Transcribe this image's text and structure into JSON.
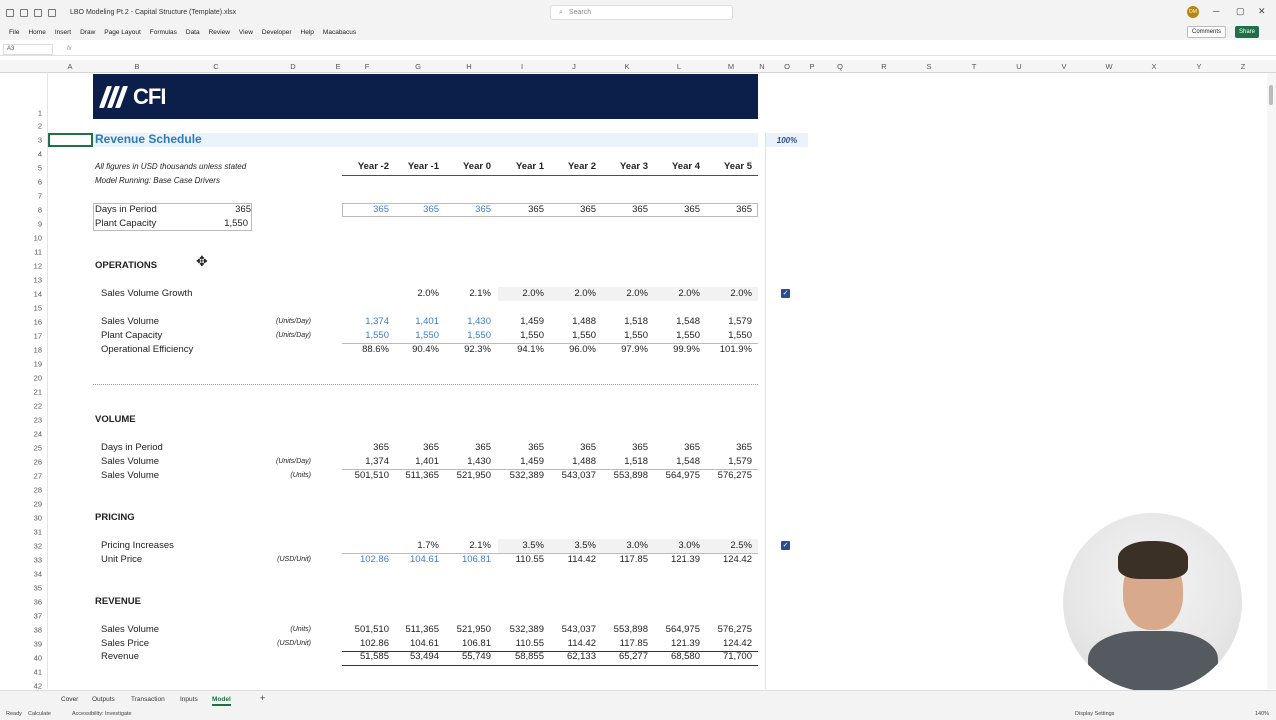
{
  "window": {
    "filename": "LBO Modeling Pt.2 - Capital Structure (Template).xlsx",
    "search_placeholder": "Search",
    "avatar_initials": "DM",
    "minimize": "─",
    "maximize": "▢",
    "close": "✕"
  },
  "menu": {
    "items": [
      "File",
      "Home",
      "Insert",
      "Draw",
      "Page Layout",
      "Formulas",
      "Data",
      "Review",
      "View",
      "Developer",
      "Help",
      "Macabacus"
    ],
    "comments": "Comments",
    "share": "Share"
  },
  "formula_bar": {
    "name_box": "A3",
    "fx": "fx"
  },
  "columns": [
    "A",
    "B",
    "C",
    "D",
    "E",
    "F",
    "G",
    "H",
    "I",
    "J",
    "K",
    "L",
    "M",
    "N",
    "O",
    "P",
    "Q",
    "R",
    "S",
    "T",
    "U",
    "V",
    "W",
    "X",
    "Y",
    "Z"
  ],
  "rows": [
    "1",
    "2",
    "3",
    "4",
    "5",
    "6",
    "7",
    "8",
    "9",
    "10",
    "11",
    "12",
    "13",
    "14",
    "15",
    "16",
    "17",
    "18",
    "19",
    "20",
    "21",
    "22",
    "23",
    "24",
    "25",
    "26",
    "27",
    "28",
    "29",
    "30",
    "31",
    "32",
    "33",
    "34",
    "35",
    "36",
    "37",
    "38",
    "39",
    "40",
    "41",
    "42"
  ],
  "sheet": {
    "logo_text": "CFI",
    "title": "Revenue Schedule",
    "scenario_pct": "100%",
    "note1": "All figures in USD thousands unless stated",
    "note2": "Model Running: Base Case Drivers",
    "years": [
      "Year -2",
      "Year -1",
      "Year 0",
      "Year 1",
      "Year 2",
      "Year 3",
      "Year 4",
      "Year 5"
    ],
    "days_in_period_label": "Days in Period",
    "days_in_period_value": "365",
    "plant_capacity_label": "Plant Capacity",
    "plant_capacity_value": "1,550",
    "days_row": [
      "365",
      "365",
      "365",
      "365",
      "365",
      "365",
      "365",
      "365"
    ],
    "operations": {
      "heading": "OPERATIONS",
      "growth_label": "Sales Volume Growth",
      "growth": [
        "",
        "2.0%",
        "2.1%",
        "2.0%",
        "2.0%",
        "2.0%",
        "2.0%",
        "2.0%"
      ],
      "sales_volume_label": "Sales Volume",
      "sales_volume_unit": "(Units/Day)",
      "sales_volume": [
        "1,374",
        "1,401",
        "1,430",
        "1,459",
        "1,488",
        "1,518",
        "1,548",
        "1,579"
      ],
      "plant_capacity_label": "Plant Capacity",
      "plant_capacity_unit": "(Units/Day)",
      "plant_capacity": [
        "1,550",
        "1,550",
        "1,550",
        "1,550",
        "1,550",
        "1,550",
        "1,550",
        "1,550"
      ],
      "efficiency_label": "Operational Efficiency",
      "efficiency": [
        "88.6%",
        "90.4%",
        "92.3%",
        "94.1%",
        "96.0%",
        "97.9%",
        "99.9%",
        "101.9%"
      ]
    },
    "volume": {
      "heading": "VOLUME",
      "days_label": "Days in Period",
      "days": [
        "365",
        "365",
        "365",
        "365",
        "365",
        "365",
        "365",
        "365"
      ],
      "sv_day_label": "Sales Volume",
      "sv_day_unit": "(Units/Day)",
      "sv_day": [
        "1,374",
        "1,401",
        "1,430",
        "1,459",
        "1,488",
        "1,518",
        "1,548",
        "1,579"
      ],
      "sv_label": "Sales Volume",
      "sv_unit": "(Units)",
      "sv": [
        "501,510",
        "511,365",
        "521,950",
        "532,389",
        "543,037",
        "553,898",
        "564,975",
        "576,275"
      ]
    },
    "pricing": {
      "heading": "PRICING",
      "inc_label": "Pricing Increases",
      "inc": [
        "",
        "1.7%",
        "2.1%",
        "3.5%",
        "3.5%",
        "3.0%",
        "3.0%",
        "2.5%"
      ],
      "price_label": "Unit Price",
      "price_unit": "(USD/Unit)",
      "price": [
        "102.86",
        "104.61",
        "106.81",
        "110.55",
        "114.42",
        "117.85",
        "121.39",
        "124.42"
      ]
    },
    "revenue": {
      "heading": "REVENUE",
      "sv_label": "Sales Volume",
      "sv_unit": "(Units)",
      "sv": [
        "501,510",
        "511,365",
        "521,950",
        "532,389",
        "543,037",
        "553,898",
        "564,975",
        "576,275"
      ],
      "sp_label": "Sales Price",
      "sp_unit": "(USD/Unit)",
      "sp": [
        "102.86",
        "104.61",
        "106.81",
        "110.55",
        "114.42",
        "117.85",
        "121.39",
        "124.42"
      ],
      "rev_label": "Revenue",
      "rev": [
        "51,585",
        "53,494",
        "55,749",
        "58,855",
        "62,133",
        "65,277",
        "68,580",
        "71,700"
      ]
    },
    "checkmark": "✓"
  },
  "tabs": [
    "Cover",
    "Outputs",
    "Transaction",
    "Inputs",
    "Model"
  ],
  "active_tab": "Model",
  "add_sheet": "+",
  "status": {
    "ready": "Ready",
    "calculate": "Calculate",
    "accessibility": "Accessibility: Investigate",
    "display_settings": "Display Settings",
    "zoom": "140%"
  }
}
